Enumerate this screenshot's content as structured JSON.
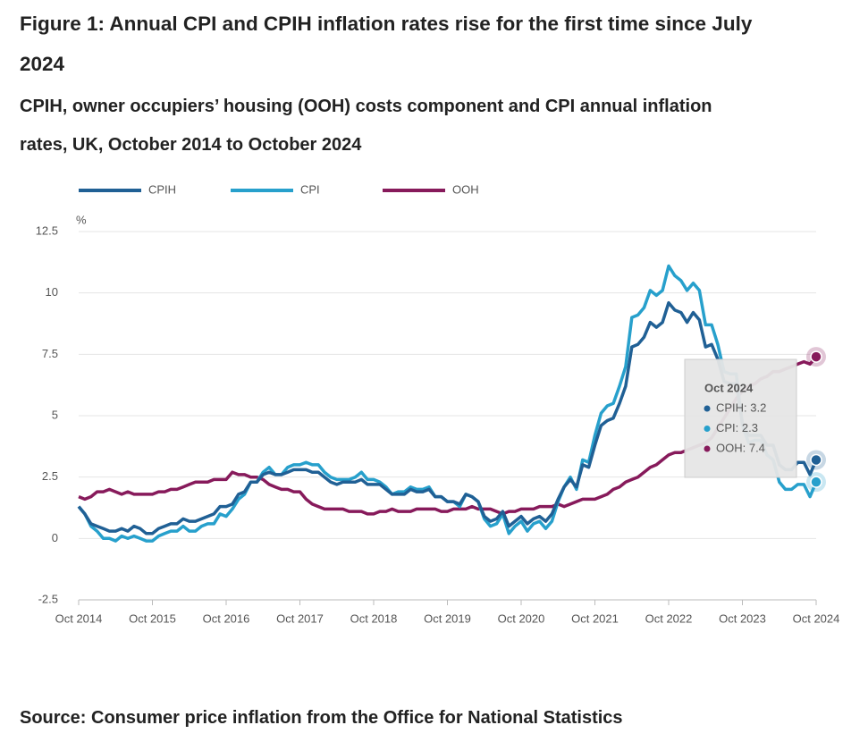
{
  "chart_data": {
    "type": "line",
    "title": "Figure 1: Annual CPI and CPIH inflation rates rise for the first time since July 2024",
    "subtitle": "CPIH, owner occupiers’ housing (OOH) costs component and CPI annual inflation rates, UK, October 2014 to October 2024",
    "source": "Source: Consumer price inflation from the Office for National Statistics",
    "y_label": "%",
    "x": [
      "2014-10",
      "2014-11",
      "2014-12",
      "2015-01",
      "2015-02",
      "2015-03",
      "2015-04",
      "2015-05",
      "2015-06",
      "2015-07",
      "2015-08",
      "2015-09",
      "2015-10",
      "2015-11",
      "2015-12",
      "2016-01",
      "2016-02",
      "2016-03",
      "2016-04",
      "2016-05",
      "2016-06",
      "2016-07",
      "2016-08",
      "2016-09",
      "2016-10",
      "2016-11",
      "2016-12",
      "2017-01",
      "2017-02",
      "2017-03",
      "2017-04",
      "2017-05",
      "2017-06",
      "2017-07",
      "2017-08",
      "2017-09",
      "2017-10",
      "2017-11",
      "2017-12",
      "2018-01",
      "2018-02",
      "2018-03",
      "2018-04",
      "2018-05",
      "2018-06",
      "2018-07",
      "2018-08",
      "2018-09",
      "2018-10",
      "2018-11",
      "2018-12",
      "2019-01",
      "2019-02",
      "2019-03",
      "2019-04",
      "2019-05",
      "2019-06",
      "2019-07",
      "2019-08",
      "2019-09",
      "2019-10",
      "2019-11",
      "2019-12",
      "2020-01",
      "2020-02",
      "2020-03",
      "2020-04",
      "2020-05",
      "2020-06",
      "2020-07",
      "2020-08",
      "2020-09",
      "2020-10",
      "2020-11",
      "2020-12",
      "2021-01",
      "2021-02",
      "2021-03",
      "2021-04",
      "2021-05",
      "2021-06",
      "2021-07",
      "2021-08",
      "2021-09",
      "2021-10",
      "2021-11",
      "2021-12",
      "2022-01",
      "2022-02",
      "2022-03",
      "2022-04",
      "2022-05",
      "2022-06",
      "2022-07",
      "2022-08",
      "2022-09",
      "2022-10",
      "2022-11",
      "2022-12",
      "2023-01",
      "2023-02",
      "2023-03",
      "2023-04",
      "2023-05",
      "2023-06",
      "2023-07",
      "2023-08",
      "2023-09",
      "2023-10",
      "2023-11",
      "2023-12",
      "2024-01",
      "2024-02",
      "2024-03",
      "2024-04",
      "2024-05",
      "2024-06",
      "2024-07",
      "2024-08",
      "2024-09",
      "2024-10"
    ],
    "series": [
      {
        "name": "CPIH",
        "color": "#206095",
        "values": [
          1.3,
          1.0,
          0.6,
          0.5,
          0.4,
          0.3,
          0.3,
          0.4,
          0.3,
          0.5,
          0.4,
          0.2,
          0.2,
          0.4,
          0.5,
          0.6,
          0.6,
          0.8,
          0.7,
          0.7,
          0.8,
          0.9,
          1.0,
          1.3,
          1.3,
          1.4,
          1.8,
          1.9,
          2.3,
          2.3,
          2.6,
          2.7,
          2.6,
          2.6,
          2.7,
          2.8,
          2.8,
          2.8,
          2.7,
          2.7,
          2.5,
          2.3,
          2.2,
          2.3,
          2.3,
          2.3,
          2.4,
          2.2,
          2.2,
          2.2,
          2.0,
          1.8,
          1.8,
          1.8,
          2.0,
          1.9,
          1.9,
          2.0,
          1.7,
          1.7,
          1.5,
          1.5,
          1.4,
          1.8,
          1.7,
          1.5,
          0.9,
          0.7,
          0.8,
          1.1,
          0.5,
          0.7,
          0.9,
          0.6,
          0.8,
          0.9,
          0.7,
          1.0,
          1.6,
          2.1,
          2.4,
          2.1,
          3.0,
          2.9,
          3.8,
          4.6,
          4.8,
          4.9,
          5.5,
          6.2,
          7.8,
          7.9,
          8.2,
          8.8,
          8.6,
          8.8,
          9.6,
          9.3,
          9.2,
          8.8,
          9.2,
          8.9,
          7.8,
          7.9,
          7.3,
          6.4,
          6.3,
          6.3,
          4.7,
          4.2,
          4.2,
          4.2,
          3.8,
          3.8,
          3.0,
          2.8,
          2.8,
          3.1,
          3.1,
          2.6,
          3.2
        ]
      },
      {
        "name": "CPI",
        "color": "#27a0cc",
        "values": [
          1.3,
          1.0,
          0.5,
          0.3,
          0.0,
          0.0,
          -0.1,
          0.1,
          0.0,
          0.1,
          0.0,
          -0.1,
          -0.1,
          0.1,
          0.2,
          0.3,
          0.3,
          0.5,
          0.3,
          0.3,
          0.5,
          0.6,
          0.6,
          1.0,
          0.9,
          1.2,
          1.6,
          1.8,
          2.3,
          2.3,
          2.7,
          2.9,
          2.6,
          2.6,
          2.9,
          3.0,
          3.0,
          3.1,
          3.0,
          3.0,
          2.7,
          2.5,
          2.4,
          2.4,
          2.4,
          2.5,
          2.7,
          2.4,
          2.4,
          2.3,
          2.1,
          1.8,
          1.9,
          1.9,
          2.1,
          2.0,
          2.0,
          2.1,
          1.7,
          1.7,
          1.5,
          1.5,
          1.3,
          1.8,
          1.7,
          1.5,
          0.8,
          0.5,
          0.6,
          1.0,
          0.2,
          0.5,
          0.7,
          0.3,
          0.6,
          0.7,
          0.4,
          0.7,
          1.5,
          2.1,
          2.5,
          2.0,
          3.2,
          3.1,
          4.2,
          5.1,
          5.4,
          5.5,
          6.2,
          7.0,
          9.0,
          9.1,
          9.4,
          10.1,
          9.9,
          10.1,
          11.1,
          10.7,
          10.5,
          10.1,
          10.4,
          10.1,
          8.7,
          8.7,
          7.9,
          6.8,
          6.7,
          6.7,
          4.6,
          3.9,
          4.0,
          4.0,
          3.4,
          3.2,
          2.3,
          2.0,
          2.0,
          2.2,
          2.2,
          1.7,
          2.3
        ]
      },
      {
        "name": "OOH",
        "color": "#871a5b",
        "values": [
          1.7,
          1.6,
          1.7,
          1.9,
          1.9,
          2.0,
          1.9,
          1.8,
          1.9,
          1.8,
          1.8,
          1.8,
          1.8,
          1.9,
          1.9,
          2.0,
          2.0,
          2.1,
          2.2,
          2.3,
          2.3,
          2.3,
          2.4,
          2.4,
          2.4,
          2.7,
          2.6,
          2.6,
          2.5,
          2.5,
          2.4,
          2.2,
          2.1,
          2.0,
          2.0,
          1.9,
          1.9,
          1.6,
          1.4,
          1.3,
          1.2,
          1.2,
          1.2,
          1.2,
          1.1,
          1.1,
          1.1,
          1.0,
          1.0,
          1.1,
          1.1,
          1.2,
          1.1,
          1.1,
          1.1,
          1.2,
          1.2,
          1.2,
          1.2,
          1.1,
          1.1,
          1.2,
          1.2,
          1.2,
          1.3,
          1.2,
          1.2,
          1.2,
          1.1,
          1.0,
          1.1,
          1.1,
          1.2,
          1.2,
          1.2,
          1.3,
          1.3,
          1.3,
          1.4,
          1.3,
          1.4,
          1.5,
          1.6,
          1.6,
          1.6,
          1.7,
          1.8,
          2.0,
          2.1,
          2.3,
          2.4,
          2.5,
          2.7,
          2.9,
          3.0,
          3.2,
          3.4,
          3.5,
          3.5,
          3.6,
          3.7,
          3.8,
          3.9,
          4.1,
          4.5,
          4.9,
          5.3,
          5.7,
          6.0,
          6.2,
          6.3,
          6.5,
          6.6,
          6.8,
          6.8,
          6.9,
          7.0,
          7.1,
          7.2,
          7.1,
          7.4
        ]
      }
    ],
    "xlim": [
      "2014-10",
      "2024-10"
    ],
    "xticks": [
      {
        "value": "2014-10",
        "label": "Oct 2014"
      },
      {
        "value": "2015-10",
        "label": "Oct 2015"
      },
      {
        "value": "2016-10",
        "label": "Oct 2016"
      },
      {
        "value": "2017-10",
        "label": "Oct 2017"
      },
      {
        "value": "2018-10",
        "label": "Oct 2018"
      },
      {
        "value": "2019-10",
        "label": "Oct 2019"
      },
      {
        "value": "2020-10",
        "label": "Oct 2020"
      },
      {
        "value": "2021-10",
        "label": "Oct 2021"
      },
      {
        "value": "2022-10",
        "label": "Oct 2022"
      },
      {
        "value": "2023-10",
        "label": "Oct 2023"
      },
      {
        "value": "2024-10",
        "label": "Oct 2024"
      }
    ],
    "ylim": [
      -2.5,
      12.5
    ],
    "yticks": [
      -2.5,
      0,
      2.5,
      5,
      7.5,
      10,
      12.5
    ],
    "grid": true,
    "tooltip": {
      "title": "Oct 2024",
      "items": [
        "CPIH: 3.2",
        "CPI: 2.3",
        "OOH: 7.4"
      ]
    }
  }
}
